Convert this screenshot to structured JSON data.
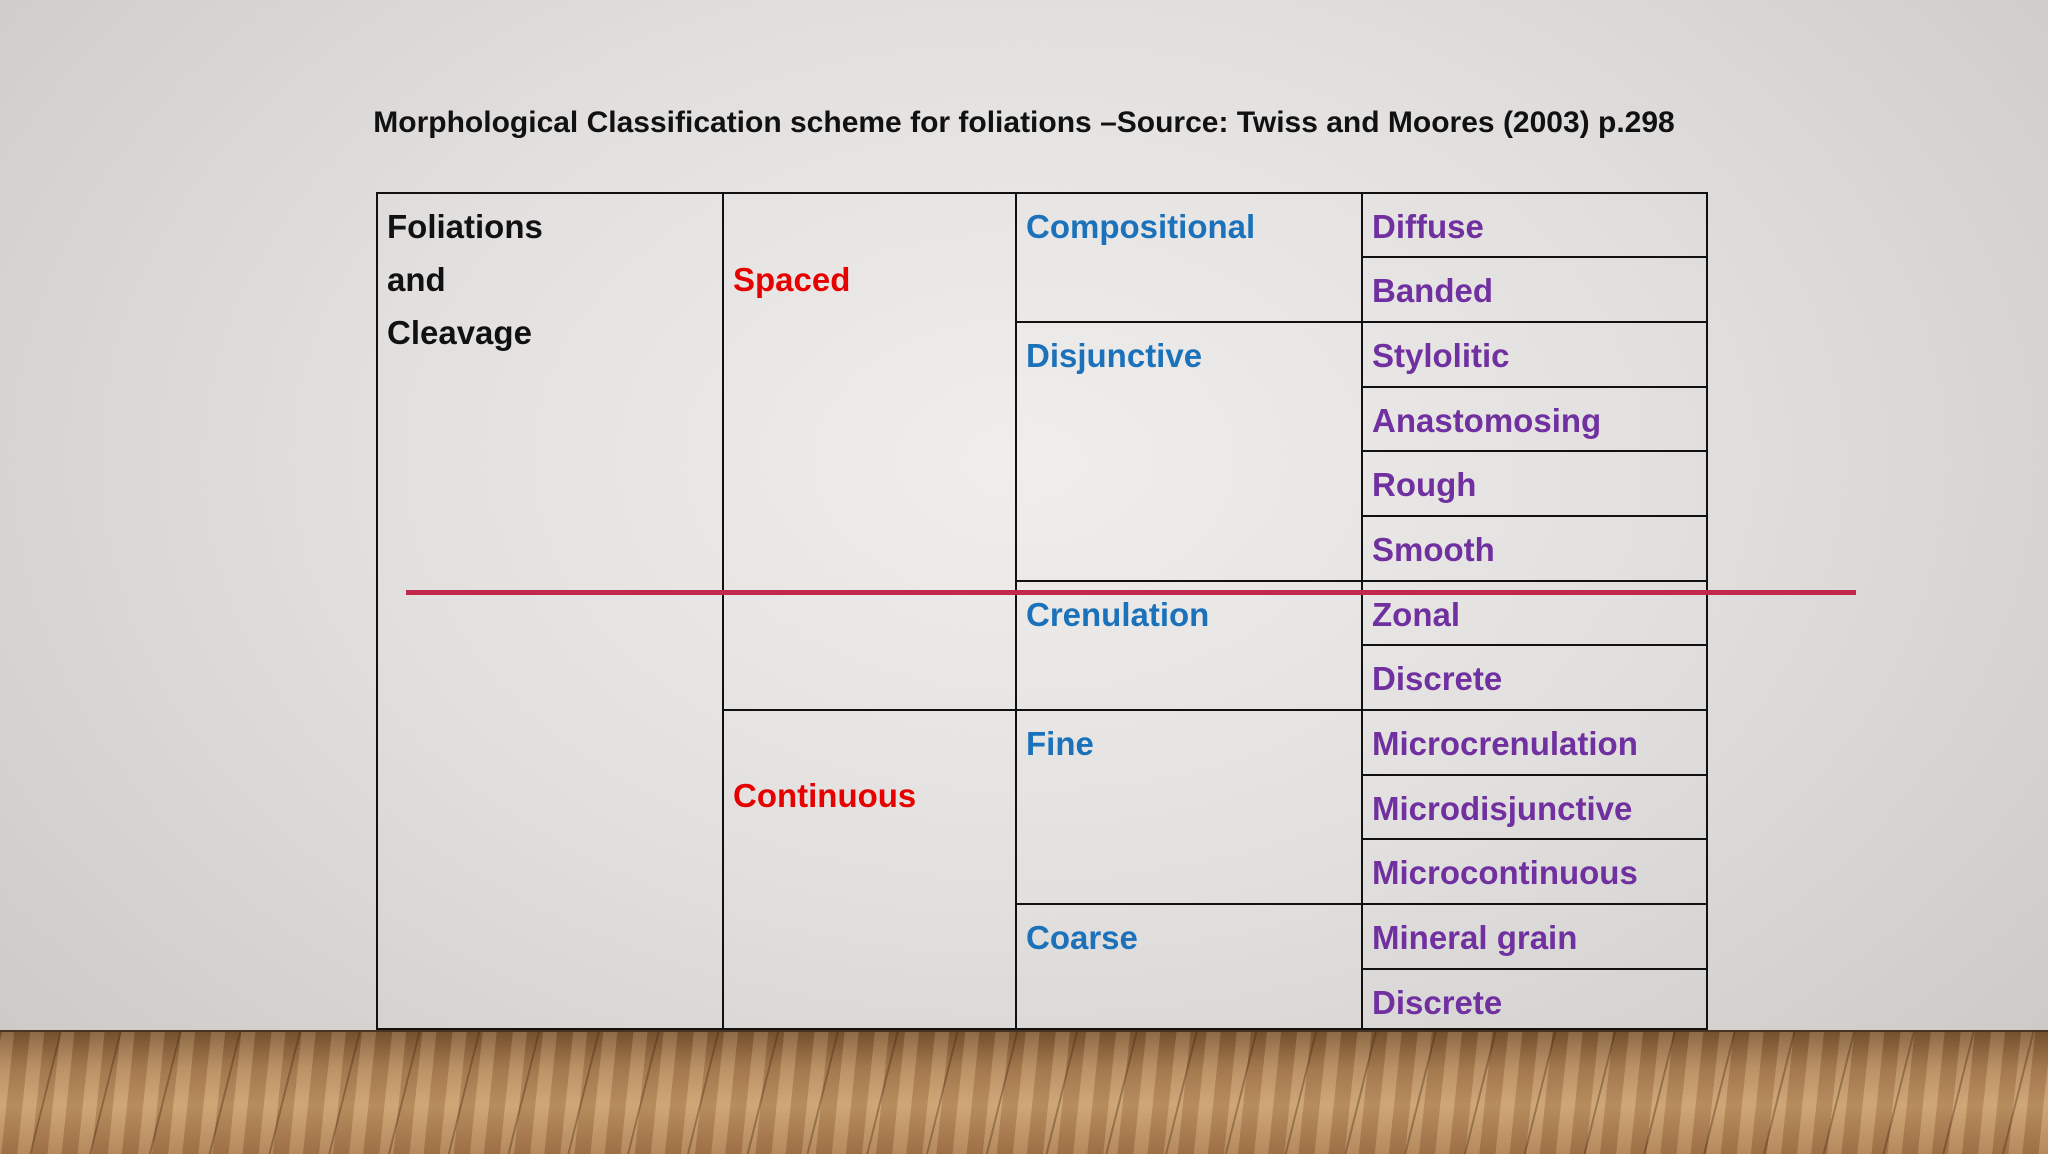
{
  "slide": {
    "title": "Morphological Classification scheme for foliations –Source: Twiss and Moores (2003) p.298"
  },
  "table": {
    "root": [
      "Foliations",
      "and",
      "Cleavage"
    ],
    "groups": [
      {
        "label": "Spaced"
      },
      {
        "label": "Continuous"
      }
    ],
    "types": [
      {
        "label": "Compositional"
      },
      {
        "label": "Disjunctive"
      },
      {
        "label": "Crenulation"
      },
      {
        "label": "Fine"
      },
      {
        "label": "Coarse"
      }
    ],
    "subtypes": [
      "Diffuse",
      "Banded",
      "Stylolitic",
      "Anastomosing",
      "Rough",
      "Smooth",
      "Zonal",
      "Discrete",
      "Microcrenulation",
      "Microdisjunctive",
      "Microcontinuous",
      "Mineral grain",
      "Discrete"
    ]
  },
  "colors": {
    "root": "#111111",
    "group": "#e60000",
    "type": "#1b72bb",
    "subtype": "#7030a0",
    "strike_line": "#c0284e"
  }
}
